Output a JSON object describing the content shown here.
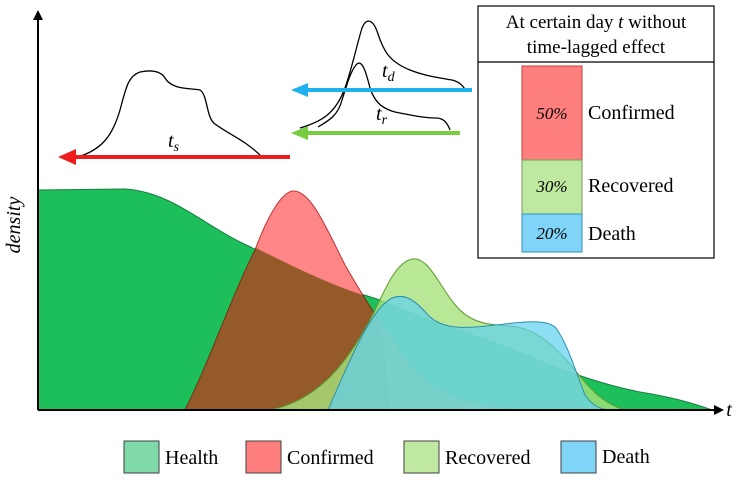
{
  "axes": {
    "y_label": "density",
    "x_label": "t"
  },
  "lag_labels": {
    "t_s": {
      "base": "t",
      "sub": "s"
    },
    "t_d": {
      "base": "t",
      "sub": "d"
    },
    "t_r": {
      "base": "t",
      "sub": "r"
    }
  },
  "info_box": {
    "title_prefix": "At certain day ",
    "title_var": "t",
    "title_suffix": " without",
    "title_line2": "time-lagged effect",
    "rows": [
      {
        "pct": "50%",
        "label": "Confirmed",
        "color": "#ff7f7f"
      },
      {
        "pct": "30%",
        "label": "Recovered",
        "color": "#bfe8a0"
      },
      {
        "pct": "20%",
        "label": "Death",
        "color": "#7fd4f7"
      }
    ]
  },
  "legend": [
    {
      "label": "Health",
      "color": "#7fd9a8"
    },
    {
      "label": "Confirmed",
      "color": "#ff7f7f"
    },
    {
      "label": "Recovered",
      "color": "#bfe8a0"
    },
    {
      "label": "Death",
      "color": "#7fd4f7"
    }
  ],
  "colors": {
    "health": "#1dbf5a",
    "confirmed": "#ff6b6b",
    "overlap": "#955a2a",
    "recovered": "#a6e27a",
    "death": "#5fd2f0",
    "arrow_s": "#ee1c1c",
    "arrow_d": "#1fb1ee",
    "arrow_r": "#77cc40"
  }
}
